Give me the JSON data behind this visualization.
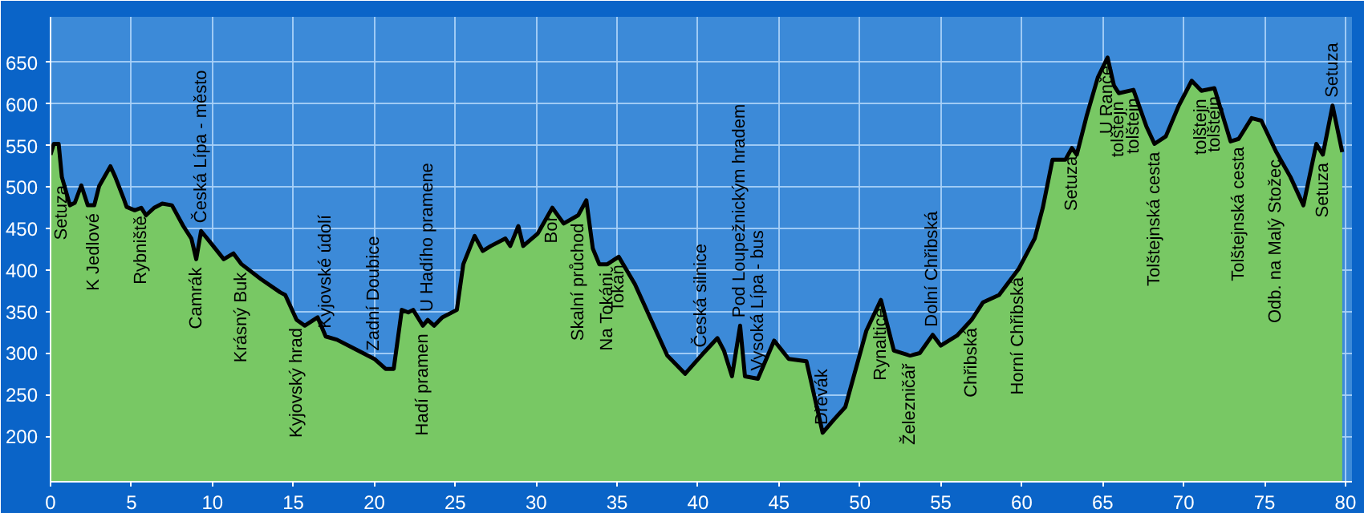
{
  "chart_data": {
    "type": "area",
    "x": [
      0,
      0.2,
      0.5,
      0.7,
      1.2,
      1.5,
      1.9,
      2.3,
      2.7,
      3,
      3.7,
      4,
      4.5,
      4.7,
      5.2,
      5.6,
      5.9,
      6.4,
      6.9,
      7.5,
      8.2,
      8.7,
      9,
      9.3,
      9.8,
      10.7,
      11.3,
      11.8,
      13,
      14.2,
      14.5,
      15.2,
      15.7,
      16.5,
      17,
      17.7,
      18.7,
      20,
      20.7,
      21.2,
      21.7,
      22.1,
      22.4,
      23,
      23.3,
      23.7,
      24.2,
      25.1,
      25.5,
      26.2,
      26.7,
      27.2,
      28.1,
      28.4,
      28.9,
      29.2,
      30.1,
      31,
      31.7,
      32.6,
      33.1,
      33.5,
      33.9,
      34.4,
      35.1,
      36.1,
      37.1,
      38.1,
      39.2,
      40.2,
      41.2,
      41.6,
      42.1,
      42.6,
      42.9,
      43.7,
      44.7,
      45.6,
      46.7,
      47.7,
      48.4,
      49.1,
      50.4,
      51.3,
      52.1,
      53.1,
      53.7,
      54.5,
      55,
      56,
      56.9,
      57.6,
      58.6,
      59.8,
      60.8,
      61.3,
      61.9,
      62.7,
      63.1,
      63.4,
      64,
      64.7,
      65.3,
      65.7,
      66,
      66.9,
      67.7,
      68.2,
      68.9,
      69.7,
      70.5,
      71.1,
      71.9,
      72.9,
      73.4,
      74.2,
      74.8,
      75.7,
      76.6,
      77.4,
      78.2,
      78.6,
      79.2,
      79.8
    ],
    "values": [
      539,
      552,
      552,
      512,
      478,
      481,
      502,
      478,
      478,
      501,
      525,
      512,
      487,
      476,
      472,
      475,
      466,
      475,
      480,
      478,
      453,
      438,
      413,
      447,
      435,
      413,
      420,
      407,
      389,
      373,
      370,
      340,
      333,
      343,
      320,
      316,
      306,
      293,
      281,
      281,
      352,
      349,
      352,
      333,
      340,
      333,
      343,
      352,
      407,
      441,
      423,
      429,
      438,
      429,
      453,
      429,
      444,
      475,
      456,
      466,
      484,
      426,
      407,
      407,
      416,
      383,
      340,
      297,
      275,
      297,
      318,
      303,
      272,
      333,
      272,
      269,
      315,
      293,
      290,
      204,
      220,
      235,
      327,
      364,
      303,
      297,
      300,
      322,
      309,
      321,
      340,
      361,
      370,
      401,
      438,
      475,
      533,
      533,
      547,
      539,
      585,
      632,
      656,
      622,
      613,
      617,
      573,
      552,
      561,
      598,
      628,
      616,
      619,
      555,
      558,
      583,
      580,
      543,
      512,
      478,
      552,
      539,
      598,
      542
    ],
    "color": "#78c864",
    "xlim": [
      0,
      80.4
    ],
    "ylim": [
      145,
      705
    ],
    "xticks": [
      0,
      5,
      10,
      15,
      20,
      25,
      30,
      35,
      40,
      45,
      50,
      55,
      60,
      65,
      70,
      75,
      80
    ],
    "yticks": [
      200,
      250,
      300,
      350,
      400,
      450,
      500,
      550,
      600,
      650
    ],
    "grid": true,
    "annotations": [
      {
        "text": "Setuza",
        "x": 0.7,
        "y": 512
      },
      {
        "text": "K Jedlové",
        "x": 2.7,
        "y": 478
      },
      {
        "text": "Rybniště",
        "x": 5.6,
        "y": 475
      },
      {
        "text": "Camrák",
        "x": 9,
        "y": 413
      },
      {
        "text": "Česká Lípa - město",
        "x": 9.3,
        "y": 447
      },
      {
        "text": "Krásný Buk",
        "x": 11.8,
        "y": 407
      },
      {
        "text": "Kyjovský hrad",
        "x": 15.2,
        "y": 340
      },
      {
        "text": "Kyjovské údolí",
        "x": 17,
        "y": 320
      },
      {
        "text": "Zadní Doubice",
        "x": 20,
        "y": 293
      },
      {
        "text": "Hadí pramen",
        "x": 23,
        "y": 333
      },
      {
        "text": "U Hadího pramene",
        "x": 23.3,
        "y": 340
      },
      {
        "text": "Bor",
        "x": 31,
        "y": 475
      },
      {
        "text": "Skalní průchod",
        "x": 32.6,
        "y": 466
      },
      {
        "text": "Na Tokáni",
        "x": 34.4,
        "y": 407
      },
      {
        "text": "Tokáň",
        "x": 35.1,
        "y": 416
      },
      {
        "text": "Česká silnice",
        "x": 40.2,
        "y": 297
      },
      {
        "text": "Pod Loupežnickým hradem",
        "x": 42.6,
        "y": 333
      },
      {
        "text": "Vysoká Lípa - bus",
        "x": 43.7,
        "y": 269
      },
      {
        "text": "Dřevák",
        "x": 47.7,
        "y": 204
      },
      {
        "text": "Rynaltice",
        "x": 51.3,
        "y": 364
      },
      {
        "text": "Železničář",
        "x": 53.1,
        "y": 297
      },
      {
        "text": "Dolní Chřibská",
        "x": 54.5,
        "y": 322
      },
      {
        "text": "Chřibská",
        "x": 56.9,
        "y": 340
      },
      {
        "text": "Horní Chřibská",
        "x": 59.8,
        "y": 401
      },
      {
        "text": "Setuza",
        "x": 63.1,
        "y": 547
      },
      {
        "text": "U Ranče",
        "x": 65.3,
        "y": 656
      },
      {
        "text": "tolštejn",
        "x": 66,
        "y": 613
      },
      {
        "text": "tolštejn",
        "x": 66.9,
        "y": 617
      },
      {
        "text": "Tolštejnská cesta",
        "x": 68.2,
        "y": 552
      },
      {
        "text": "tolštejn",
        "x": 71.1,
        "y": 616
      },
      {
        "text": "tolštejn",
        "x": 71.9,
        "y": 619
      },
      {
        "text": "Tolštejnská cesta",
        "x": 73.4,
        "y": 558
      },
      {
        "text": "Odb. na Malý Stožec",
        "x": 75.7,
        "y": 543
      },
      {
        "text": "Setuza",
        "x": 78.6,
        "y": 539
      },
      {
        "text": "Setuza",
        "x": 79.2,
        "y": 598
      }
    ]
  }
}
